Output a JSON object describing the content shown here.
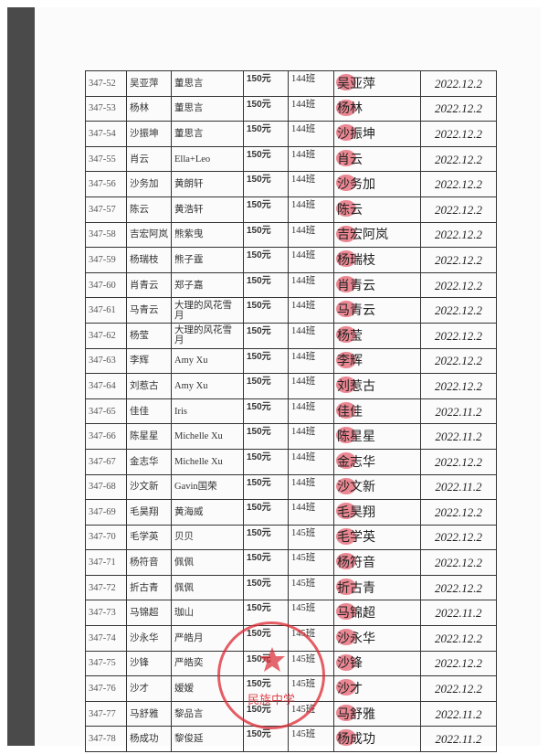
{
  "rows": [
    {
      "id": "347-52",
      "name": "吴亚萍",
      "donor": "董思言",
      "amount": "150元",
      "class": "144班",
      "signature": "吴亚萍",
      "date": "2022.12.2"
    },
    {
      "id": "347-53",
      "name": "杨林",
      "donor": "董思言",
      "amount": "150元",
      "class": "144班",
      "signature": "杨林",
      "date": "2022.12.2"
    },
    {
      "id": "347-54",
      "name": "沙振坤",
      "donor": "董思言",
      "amount": "150元",
      "class": "144班",
      "signature": "沙振坤",
      "date": "2022.12.2"
    },
    {
      "id": "347-55",
      "name": "肖云",
      "donor": "Ella+Leo",
      "amount": "150元",
      "class": "144班",
      "signature": "肖云",
      "date": "2022.12.2"
    },
    {
      "id": "347-56",
      "name": "沙务加",
      "donor": "黄朗轩",
      "amount": "150元",
      "class": "144班",
      "signature": "沙务加",
      "date": "2022.12.2"
    },
    {
      "id": "347-57",
      "name": "陈云",
      "donor": "黄浩轩",
      "amount": "150元",
      "class": "144班",
      "signature": "陈云",
      "date": "2022.12.2"
    },
    {
      "id": "347-58",
      "name": "吉宏阿岚",
      "donor": "熊紫曳",
      "amount": "150元",
      "class": "144班",
      "signature": "吉宏阿岚",
      "date": "2022.12.2"
    },
    {
      "id": "347-59",
      "name": "杨瑞枝",
      "donor": "熊子霆",
      "amount": "150元",
      "class": "144班",
      "signature": "杨瑞枝",
      "date": "2022.12.2"
    },
    {
      "id": "347-60",
      "name": "肖青云",
      "donor": "郑子嘉",
      "amount": "150元",
      "class": "144班",
      "signature": "肖青云",
      "date": "2022.12.2"
    },
    {
      "id": "347-61",
      "name": "马青云",
      "donor": "大理的风花雪月",
      "amount": "150元",
      "class": "144班",
      "signature": "马青云",
      "date": "2022.12.2"
    },
    {
      "id": "347-62",
      "name": "杨莹",
      "donor": "大理的风花雪月",
      "amount": "150元",
      "class": "144班",
      "signature": "杨莹",
      "date": "2022.12.2"
    },
    {
      "id": "347-63",
      "name": "李辉",
      "donor": "Amy Xu",
      "amount": "150元",
      "class": "144班",
      "signature": "李辉",
      "date": "2022.12.2"
    },
    {
      "id": "347-64",
      "name": "刘惹古",
      "donor": "Amy Xu",
      "amount": "150元",
      "class": "144班",
      "signature": "刘惹古",
      "date": "2022.12.2"
    },
    {
      "id": "347-65",
      "name": "佳佳",
      "donor": "Iris",
      "amount": "150元",
      "class": "144班",
      "signature": "佳佳",
      "date": "2022.11.2"
    },
    {
      "id": "347-66",
      "name": "陈星星",
      "donor": "Michelle Xu",
      "amount": "150元",
      "class": "144班",
      "signature": "陈星星",
      "date": "2022.11.2"
    },
    {
      "id": "347-67",
      "name": "金志华",
      "donor": "Michelle Xu",
      "amount": "150元",
      "class": "144班",
      "signature": "金志华",
      "date": "2022.12.2"
    },
    {
      "id": "347-68",
      "name": "沙文新",
      "donor": "Gavin国荣",
      "amount": "150元",
      "class": "144班",
      "signature": "沙文新",
      "date": "2022.11.2"
    },
    {
      "id": "347-69",
      "name": "毛昊翔",
      "donor": "黄海威",
      "amount": "150元",
      "class": "144班",
      "signature": "毛昊翔",
      "date": "2022.12.2"
    },
    {
      "id": "347-70",
      "name": "毛学英",
      "donor": "贝贝",
      "amount": "150元",
      "class": "145班",
      "signature": "毛学英",
      "date": "2022.12.2"
    },
    {
      "id": "347-71",
      "name": "杨符音",
      "donor": "佩佩",
      "amount": "150元",
      "class": "145班",
      "signature": "杨符音",
      "date": "2022.12.2"
    },
    {
      "id": "347-72",
      "name": "折古青",
      "donor": "佩佩",
      "amount": "150元",
      "class": "145班",
      "signature": "折古青",
      "date": "2022.12.2"
    },
    {
      "id": "347-73",
      "name": "马锦超",
      "donor": "珈山",
      "amount": "150元",
      "class": "145班",
      "signature": "马锦超",
      "date": "2022.11.2"
    },
    {
      "id": "347-74",
      "name": "沙永华",
      "donor": "严皓月",
      "amount": "150元",
      "class": "145班",
      "signature": "沙永华",
      "date": "2022.12.2"
    },
    {
      "id": "347-75",
      "name": "沙锋",
      "donor": "严皓奕",
      "amount": "150元",
      "class": "145班",
      "signature": "沙锋",
      "date": "2022.12.2"
    },
    {
      "id": "347-76",
      "name": "沙才",
      "donor": "嫒嫒",
      "amount": "150元",
      "class": "145班",
      "signature": "沙才",
      "date": "2022.12.2"
    },
    {
      "id": "347-77",
      "name": "马舒雅",
      "donor": "黎品言",
      "amount": "150元",
      "class": "145班",
      "signature": "马舒雅",
      "date": "2022.11.2"
    },
    {
      "id": "347-78",
      "name": "杨成功",
      "donor": "黎俊延",
      "amount": "150元",
      "class": "145班",
      "signature": "杨成功",
      "date": "2022.11.2"
    }
  ],
  "stamp": {
    "text": "民族中学",
    "color": "#dc2832"
  }
}
